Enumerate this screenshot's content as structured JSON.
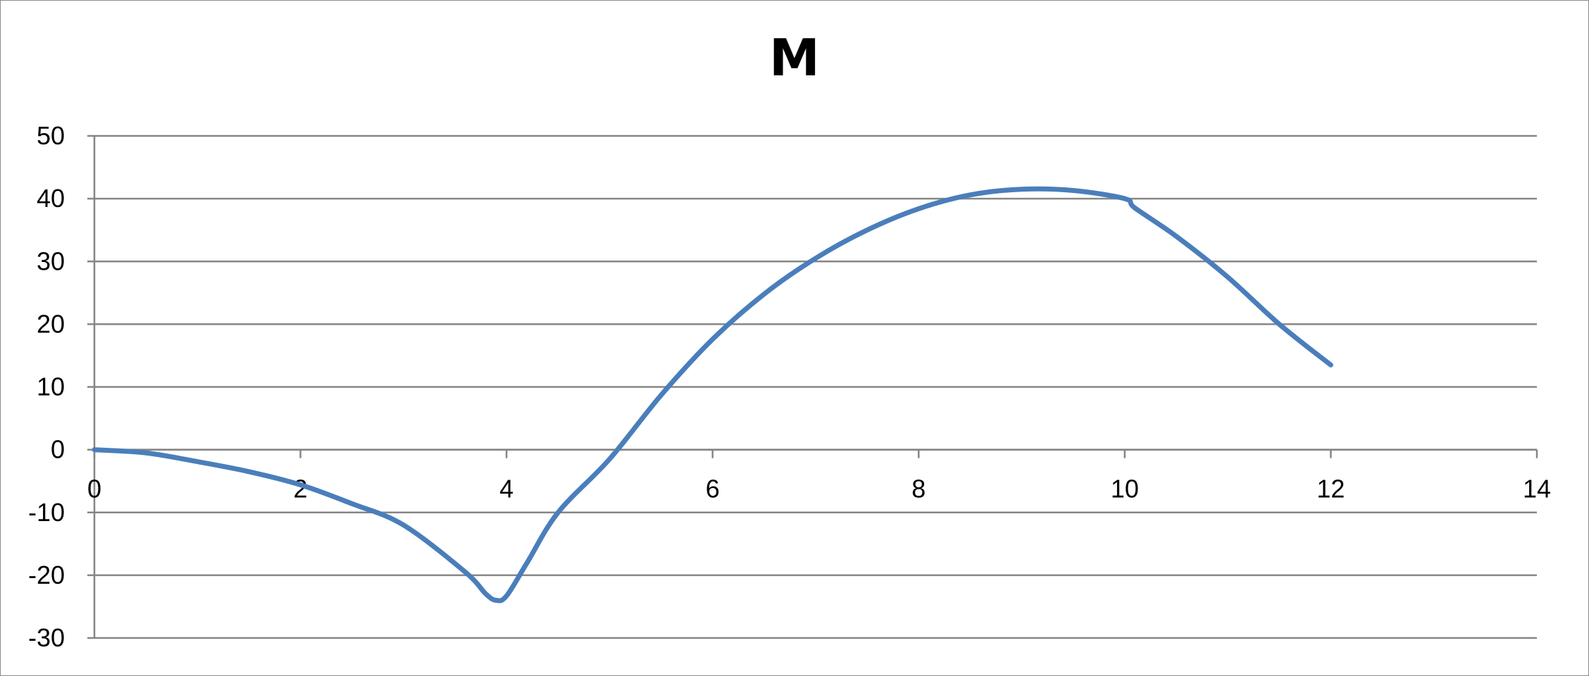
{
  "chart_data": {
    "type": "line",
    "title": "M",
    "xlabel": "",
    "ylabel": "",
    "xlim": [
      0,
      14
    ],
    "ylim": [
      -30,
      50
    ],
    "x_ticks": [
      0,
      2,
      4,
      6,
      8,
      10,
      12,
      14
    ],
    "y_ticks": [
      -30,
      -20,
      -10,
      0,
      10,
      20,
      30,
      40,
      50
    ],
    "grid": "horizontal",
    "legend": "none",
    "series_color": "#4a7ebb",
    "series": [
      {
        "x": [
          0,
          0.5,
          1,
          1.5,
          2,
          2.5,
          3,
          3.6,
          3.8,
          3.9,
          4.0,
          4.2,
          4.5,
          5,
          5.5,
          6,
          6.5,
          7,
          7.5,
          8,
          8.5,
          9,
          9.5,
          10,
          10.1,
          10.5,
          11,
          11.5,
          12
        ],
        "y": [
          0,
          -0.5,
          -1.9,
          -3.5,
          -5.6,
          -8.6,
          -12,
          -19.5,
          -23,
          -24,
          -23.3,
          -18,
          -10,
          -1.5,
          8.7,
          17.6,
          24.8,
          30.5,
          35,
          38.4,
          40.6,
          41.5,
          41.3,
          40,
          38.5,
          34,
          27.5,
          20,
          13.5
        ]
      }
    ]
  }
}
